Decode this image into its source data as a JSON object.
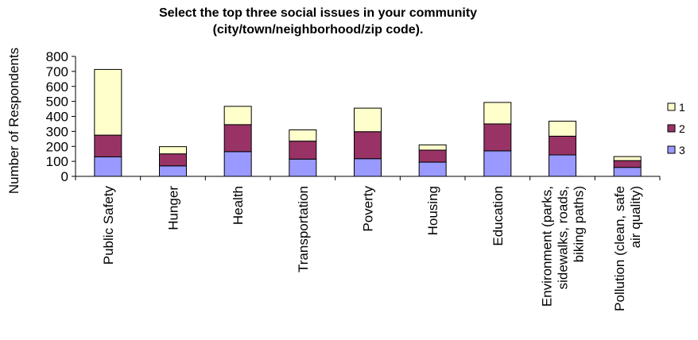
{
  "chart_data": {
    "type": "bar",
    "stacked": true,
    "title": [
      "Select the top three social issues in your community",
      "(city/town/neighborhood/zip code)."
    ],
    "xlabel": "",
    "ylabel": "Number of Respondents",
    "ylim": [
      0,
      800
    ],
    "yticks": [
      "0",
      "100",
      "200",
      "300",
      "400",
      "500",
      "600",
      "700",
      "800"
    ],
    "grid": false,
    "legend_position": "right",
    "categories": [
      [
        "Public Safety"
      ],
      [
        "Hunger"
      ],
      [
        "Health"
      ],
      [
        "Transportation"
      ],
      [
        "Poverty"
      ],
      [
        "Housing"
      ],
      [
        "Education"
      ],
      [
        "Environment (parks,",
        "sidewalks, roads,",
        "biking paths)"
      ],
      [
        "Pollution (clean, safe",
        "air quality)"
      ]
    ],
    "series": [
      {
        "name": "3",
        "color": "#9999ff",
        "values": [
          130,
          70,
          165,
          115,
          118,
          95,
          170,
          143,
          60
        ]
      },
      {
        "name": "2",
        "color": "#993366",
        "values": [
          145,
          80,
          180,
          120,
          180,
          80,
          180,
          125,
          45
        ]
      },
      {
        "name": "1",
        "color": "#ffffcc",
        "values": [
          438,
          48,
          122,
          75,
          157,
          35,
          143,
          100,
          27
        ]
      }
    ],
    "legend_order": [
      "1",
      "2",
      "3"
    ]
  }
}
